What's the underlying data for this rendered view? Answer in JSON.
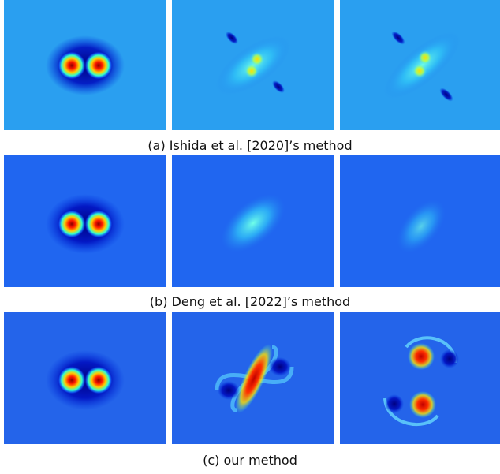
{
  "figure": {
    "captions": [
      "(a) Ishida et al. [2020]’s method",
      "(b) Deng et al. [2022]’s method",
      "(c) our method"
    ]
  }
}
